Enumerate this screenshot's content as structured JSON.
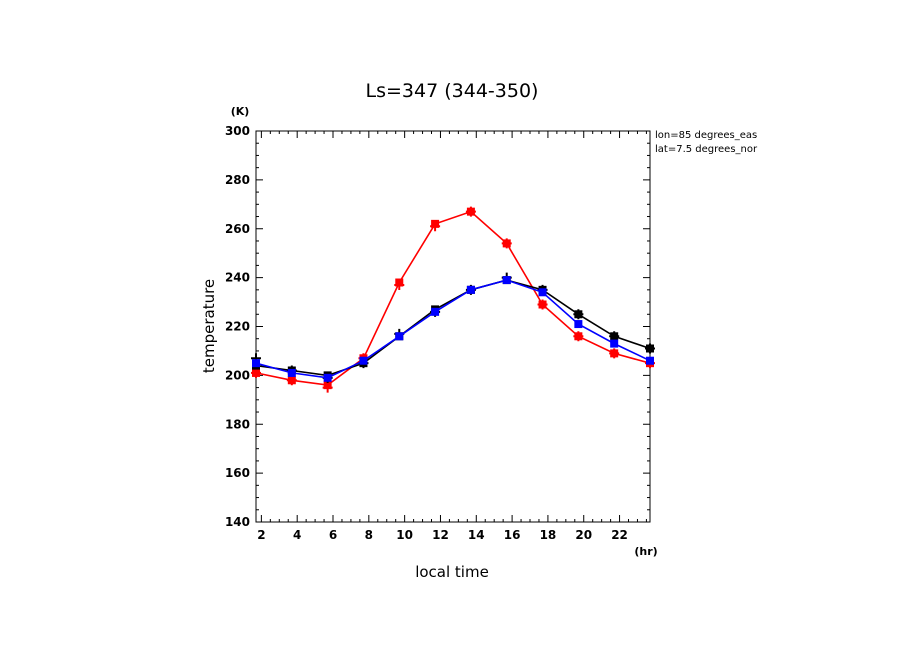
{
  "chart_data": {
    "type": "line",
    "title": "Ls=347 (344-350)",
    "xlabel": "local time",
    "ylabel": "temperature",
    "x_unit": "(hr)",
    "y_unit": "(K)",
    "annotations": [
      "lon=85 degrees_eas",
      "lat=7.5 degrees_nor"
    ],
    "xlim": [
      1.7,
      23.7
    ],
    "ylim": [
      140,
      300
    ],
    "x_ticks": [
      "2",
      "4",
      "6",
      "8",
      "10",
      "12",
      "14",
      "16",
      "18",
      "20",
      "22"
    ],
    "y_ticks": [
      "140",
      "160",
      "180",
      "200",
      "220",
      "240",
      "260",
      "280",
      "300"
    ],
    "grid": false,
    "x": [
      1.7,
      3.7,
      5.7,
      7.7,
      9.7,
      11.7,
      13.7,
      15.7,
      17.7,
      19.7,
      21.7,
      23.7
    ],
    "series": [
      {
        "color": "#ff0000",
        "values": [
          201,
          198,
          196,
          207,
          238,
          262,
          267,
          254,
          229,
          216,
          209,
          205
        ],
        "obs_marker": "plus",
        "obs": [
          201,
          198,
          195,
          207,
          237,
          261,
          267,
          254,
          229,
          216,
          209,
          205
        ]
      },
      {
        "color": "#000000",
        "values": [
          204,
          202,
          200,
          205,
          216,
          227,
          235,
          239,
          235,
          225,
          216,
          211
        ],
        "obs_marker": "plus",
        "obs": [
          207,
          202,
          199,
          205,
          217,
          226,
          235,
          240,
          235,
          225,
          216,
          211
        ]
      },
      {
        "color": "#0000ff",
        "values": [
          205,
          201,
          199,
          206,
          216,
          226,
          235,
          239,
          234,
          221,
          213,
          206
        ],
        "obs_marker": "square",
        "obs": [
          205,
          201,
          199,
          206,
          216,
          226,
          235,
          239,
          234,
          221,
          213,
          206
        ]
      }
    ]
  }
}
